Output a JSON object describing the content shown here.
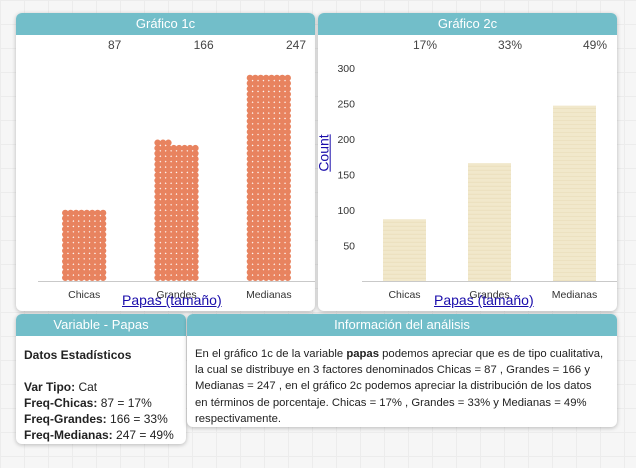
{
  "chart1": {
    "header": "Gráfico 1c",
    "xlabel": "Papas (tamaño)"
  },
  "chart2": {
    "header": "Gráfico 2c",
    "xlabel": "Papas (tamaño)",
    "ylabel": "Count"
  },
  "chart_data": [
    {
      "type": "bar",
      "title": "Gráfico 1c",
      "categories": [
        "Chicas",
        "Grandes",
        "Medianas"
      ],
      "values": [
        87,
        166,
        247
      ],
      "value_labels": [
        "87",
        "166",
        "247"
      ],
      "xlabel": "Papas (tamaño)",
      "ylabel": "",
      "ylim": [
        0,
        260
      ],
      "style": "dots",
      "color": "#e8835f"
    },
    {
      "type": "bar",
      "title": "Gráfico 2c",
      "categories": [
        "Chicas",
        "Grandes",
        "Medianas"
      ],
      "values": [
        87,
        166,
        247
      ],
      "value_labels": [
        "17%",
        "33%",
        "49%"
      ],
      "xlabel": "Papas (tamaño)",
      "ylabel": "Count",
      "ylim": [
        0,
        300
      ],
      "yticks": [
        50,
        100,
        150,
        200,
        250,
        300
      ],
      "color": "#f1e8cb"
    }
  ],
  "variable": {
    "header": "Variable - Papas",
    "title": "Datos Estadísticos",
    "tipo_label": "Var Tipo:",
    "tipo_value": "Cat",
    "chicas_label": "Freq-Chicas:",
    "chicas_value": "87 = 17%",
    "grandes_label": "Freq-Grandes:",
    "grandes_value": "166 = 33%",
    "medianas_label": "Freq-Medianas:",
    "medianas_value": "247 = 49%"
  },
  "info": {
    "header": "Información del análisis",
    "text_before": "En el gráfico 1c  de la variable ",
    "text_bold": "papas",
    "text_after": " podemos apreciar que es de tipo cualitativa, la cual se distribuye en 3 factores denominados Chicas = 87 , Grandes = 166  y Medianas = 247 , en el gráfico 2c podemos apreciar la distribución de los datos en términos de porcentaje. Chicas = 17% , Grandes = 33%  y Medianas = 49% respectivamente."
  }
}
